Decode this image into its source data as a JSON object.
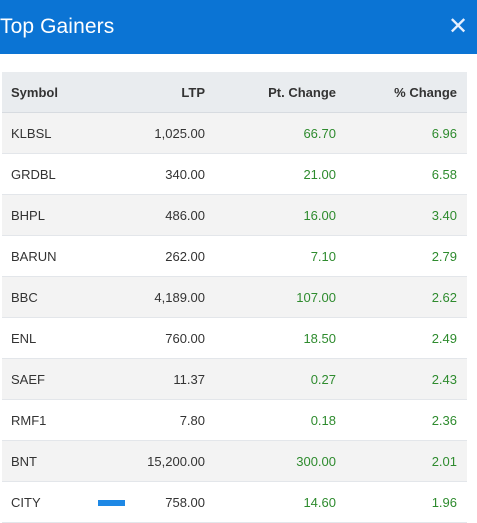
{
  "modal": {
    "title": "Top Gainers",
    "close_icon": "close-icon",
    "accent_color": "#0b74d4",
    "gain_color": "#2e8b2e"
  },
  "table": {
    "headers": {
      "symbol": "Symbol",
      "ltp": "LTP",
      "pt_change": "Pt. Change",
      "pct_change": "% Change"
    },
    "rows": [
      {
        "symbol": "KLBSL",
        "ltp": "1,025.00",
        "pt_change": "66.70",
        "pct_change": "6.96"
      },
      {
        "symbol": "GRDBL",
        "ltp": "340.00",
        "pt_change": "21.00",
        "pct_change": "6.58"
      },
      {
        "symbol": "BHPL",
        "ltp": "486.00",
        "pt_change": "16.00",
        "pct_change": "3.40"
      },
      {
        "symbol": "BARUN",
        "ltp": "262.00",
        "pt_change": "7.10",
        "pct_change": "2.79"
      },
      {
        "symbol": "BBC",
        "ltp": "4,189.00",
        "pt_change": "107.00",
        "pct_change": "2.62"
      },
      {
        "symbol": "ENL",
        "ltp": "760.00",
        "pt_change": "18.50",
        "pct_change": "2.49"
      },
      {
        "symbol": "SAEF",
        "ltp": "11.37",
        "pt_change": "0.27",
        "pct_change": "2.43"
      },
      {
        "symbol": "RMF1",
        "ltp": "7.80",
        "pt_change": "0.18",
        "pct_change": "2.36"
      },
      {
        "symbol": "BNT",
        "ltp": "15,200.00",
        "pt_change": "300.00",
        "pct_change": "2.01"
      },
      {
        "symbol": "CITY",
        "ltp": "758.00",
        "pt_change": "14.60",
        "pct_change": "1.96"
      }
    ]
  }
}
